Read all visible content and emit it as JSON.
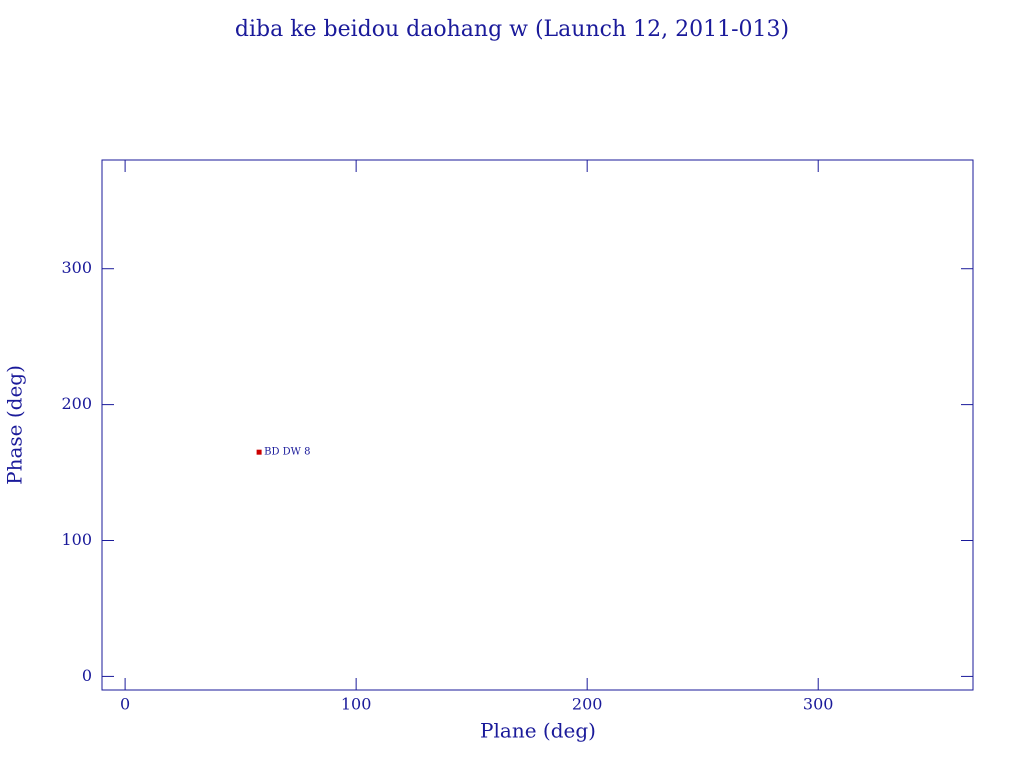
{
  "chart_data": {
    "type": "scatter",
    "title": "diba ke beidou daohang w (Launch 12, 2011-013)",
    "x_label": "Plane (deg)",
    "y_label": "Phase (deg)",
    "series": [
      {
        "name": "BD DW 8",
        "color": "#cc0000",
        "x": [
          58
        ],
        "values": [
          165
        ]
      }
    ],
    "xlim": [
      -10,
      367
    ],
    "ylim": [
      -10,
      380
    ],
    "xticks": [
      0,
      100,
      200,
      300
    ],
    "yticks": [
      0,
      100,
      200,
      300
    ],
    "axis_color": "#1a1a9a"
  }
}
